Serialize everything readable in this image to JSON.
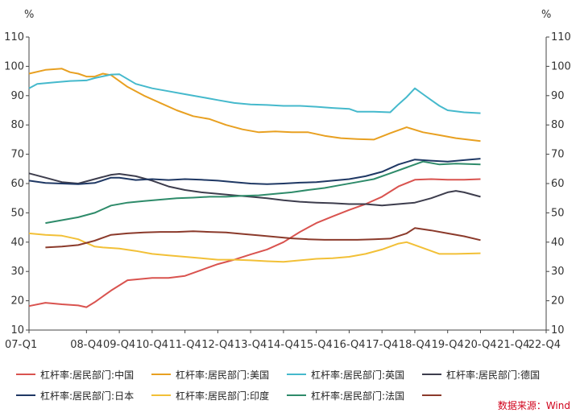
{
  "chart_data": {
    "type": "line",
    "title": "",
    "left_unit": "%",
    "right_unit": "%",
    "ylim": [
      10,
      110
    ],
    "yticks": [
      10,
      20,
      30,
      40,
      50,
      60,
      70,
      80,
      90,
      100,
      110
    ],
    "xlim": [
      0,
      63
    ],
    "xtick_labels": [
      "07-Q1",
      "08-Q4",
      "09-Q4",
      "10-Q4",
      "11-Q4",
      "12-Q4",
      "13-Q4",
      "14-Q4",
      "15-Q4",
      "16-Q4",
      "17-Q4",
      "18-Q4",
      "19-Q4",
      "20-Q4",
      "21-Q4",
      "22-Q4"
    ],
    "xtick_positions": [
      0,
      7,
      11,
      15,
      19,
      23,
      27,
      31,
      35,
      39,
      43,
      47,
      51,
      55,
      59,
      63
    ],
    "series": [
      {
        "name": "杠杆率:居民部门:中国",
        "color": "#d9534f",
        "points": [
          [
            0,
            18.2
          ],
          [
            2,
            19.3
          ],
          [
            4,
            18.8
          ],
          [
            6,
            18.4
          ],
          [
            7,
            17.8
          ],
          [
            8,
            19.5
          ],
          [
            10,
            23.5
          ],
          [
            12,
            27
          ],
          [
            15,
            27.8
          ],
          [
            17,
            27.8
          ],
          [
            19,
            28.5
          ],
          [
            21,
            30.5
          ],
          [
            23,
            32.5
          ],
          [
            25,
            34
          ],
          [
            27,
            35.8
          ],
          [
            29,
            37.5
          ],
          [
            31,
            40
          ],
          [
            33,
            43.5
          ],
          [
            35,
            46.5
          ],
          [
            37,
            48.8
          ],
          [
            39,
            51
          ],
          [
            41,
            53
          ],
          [
            43,
            55.5
          ],
          [
            45,
            59
          ],
          [
            47,
            61.3
          ],
          [
            49,
            61.5
          ],
          [
            51,
            61.3
          ],
          [
            53,
            61.3
          ],
          [
            55,
            61.5
          ]
        ]
      },
      {
        "name": "杠杆率:居民部门:美国",
        "color": "#e8a021",
        "points": [
          [
            0,
            97.5
          ],
          [
            2,
            98.8
          ],
          [
            4,
            99.2
          ],
          [
            5,
            98
          ],
          [
            6,
            97.5
          ],
          [
            7,
            96.5
          ],
          [
            8,
            96.5
          ],
          [
            9,
            97.5
          ],
          [
            10,
            97
          ],
          [
            12,
            93
          ],
          [
            14,
            90
          ],
          [
            16,
            87.5
          ],
          [
            18,
            85
          ],
          [
            20,
            83
          ],
          [
            22,
            82
          ],
          [
            24,
            80
          ],
          [
            26,
            78.5
          ],
          [
            28,
            77.5
          ],
          [
            30,
            77.8
          ],
          [
            32,
            77.5
          ],
          [
            34,
            77.5
          ],
          [
            36,
            76.3
          ],
          [
            38,
            75.5
          ],
          [
            40,
            75.2
          ],
          [
            42,
            75
          ],
          [
            44,
            77.2
          ],
          [
            46,
            79.2
          ],
          [
            48,
            77.5
          ],
          [
            50,
            76.5
          ],
          [
            52,
            75.5
          ],
          [
            55,
            74.5
          ]
        ]
      },
      {
        "name": "杠杆率:居民部门:英国",
        "color": "#45b9cc",
        "points": [
          [
            0,
            92.5
          ],
          [
            1,
            94
          ],
          [
            3,
            94.5
          ],
          [
            5,
            95
          ],
          [
            7,
            95.2
          ],
          [
            8,
            96
          ],
          [
            10,
            97.2
          ],
          [
            11,
            97.3
          ],
          [
            13,
            94
          ],
          [
            15,
            92.5
          ],
          [
            17,
            91.5
          ],
          [
            19,
            90.5
          ],
          [
            21,
            89.5
          ],
          [
            23,
            88.5
          ],
          [
            25,
            87.5
          ],
          [
            27,
            87
          ],
          [
            29,
            86.8
          ],
          [
            31,
            86.5
          ],
          [
            33,
            86.5
          ],
          [
            35,
            86.2
          ],
          [
            37,
            85.8
          ],
          [
            39,
            85.5
          ],
          [
            40,
            84.5
          ],
          [
            42,
            84.5
          ],
          [
            44,
            84.3
          ],
          [
            45,
            87
          ],
          [
            46,
            89.5
          ],
          [
            47,
            92.5
          ],
          [
            48,
            90.5
          ],
          [
            49,
            88.5
          ],
          [
            50,
            86.5
          ],
          [
            51,
            85
          ],
          [
            53,
            84.3
          ],
          [
            55,
            84
          ]
        ]
      },
      {
        "name": "杠杆率:居民部门:德国",
        "color": "#3d3d4d",
        "points": [
          [
            0,
            63.5
          ],
          [
            2,
            62
          ],
          [
            4,
            60.5
          ],
          [
            6,
            60
          ],
          [
            8,
            61.5
          ],
          [
            10,
            63
          ],
          [
            11,
            63.3
          ],
          [
            13,
            62.5
          ],
          [
            15,
            61
          ],
          [
            17,
            59
          ],
          [
            19,
            57.8
          ],
          [
            21,
            57
          ],
          [
            23,
            56.5
          ],
          [
            25,
            56
          ],
          [
            27,
            55.5
          ],
          [
            29,
            55
          ],
          [
            31,
            54.3
          ],
          [
            33,
            53.8
          ],
          [
            35,
            53.5
          ],
          [
            37,
            53.3
          ],
          [
            39,
            53
          ],
          [
            41,
            53
          ],
          [
            43,
            52.5
          ],
          [
            45,
            53
          ],
          [
            47,
            53.5
          ],
          [
            49,
            55
          ],
          [
            51,
            57
          ],
          [
            52,
            57.5
          ],
          [
            53,
            57
          ],
          [
            55,
            55.5
          ]
        ]
      },
      {
        "name": "杠杆率:居民部门:日本",
        "color": "#1f3864",
        "points": [
          [
            0,
            61
          ],
          [
            2,
            60.2
          ],
          [
            4,
            60
          ],
          [
            6,
            59.8
          ],
          [
            8,
            60.2
          ],
          [
            10,
            62
          ],
          [
            11,
            62
          ],
          [
            13,
            61.2
          ],
          [
            15,
            61.5
          ],
          [
            17,
            61.2
          ],
          [
            19,
            61.5
          ],
          [
            21,
            61.3
          ],
          [
            23,
            61
          ],
          [
            25,
            60.5
          ],
          [
            27,
            60
          ],
          [
            29,
            59.8
          ],
          [
            31,
            60
          ],
          [
            33,
            60.3
          ],
          [
            35,
            60.5
          ],
          [
            37,
            61
          ],
          [
            39,
            61.5
          ],
          [
            41,
            62.5
          ],
          [
            43,
            64
          ],
          [
            45,
            66.5
          ],
          [
            47,
            68.2
          ],
          [
            49,
            67.8
          ],
          [
            51,
            67.5
          ],
          [
            53,
            68
          ],
          [
            55,
            68.5
          ]
        ]
      },
      {
        "name": "杠杆率:居民部门:印度",
        "color": "#f2c037",
        "points": [
          [
            0,
            43
          ],
          [
            2,
            42.5
          ],
          [
            4,
            42.2
          ],
          [
            6,
            41
          ],
          [
            8,
            38.5
          ],
          [
            9,
            38.2
          ],
          [
            11,
            37.8
          ],
          [
            13,
            37
          ],
          [
            15,
            36
          ],
          [
            17,
            35.5
          ],
          [
            19,
            35
          ],
          [
            21,
            34.5
          ],
          [
            23,
            34
          ],
          [
            25,
            34
          ],
          [
            27,
            33.8
          ],
          [
            29,
            33.5
          ],
          [
            31,
            33.3
          ],
          [
            33,
            33.8
          ],
          [
            35,
            34.3
          ],
          [
            37,
            34.5
          ],
          [
            39,
            35
          ],
          [
            41,
            36
          ],
          [
            43,
            37.5
          ],
          [
            45,
            39.5
          ],
          [
            46,
            40
          ],
          [
            48,
            38
          ],
          [
            50,
            36
          ],
          [
            52,
            36
          ],
          [
            55,
            36.2
          ]
        ]
      },
      {
        "name": "杠杆率:居民部门:法国",
        "color": "#2e8b6a",
        "points": [
          [
            2,
            46.5
          ],
          [
            4,
            47.5
          ],
          [
            6,
            48.5
          ],
          [
            8,
            50
          ],
          [
            10,
            52.5
          ],
          [
            12,
            53.5
          ],
          [
            14,
            54
          ],
          [
            16,
            54.5
          ],
          [
            18,
            55
          ],
          [
            20,
            55.2
          ],
          [
            22,
            55.5
          ],
          [
            24,
            55.5
          ],
          [
            26,
            55.8
          ],
          [
            28,
            56
          ],
          [
            30,
            56.5
          ],
          [
            32,
            57
          ],
          [
            34,
            57.8
          ],
          [
            36,
            58.5
          ],
          [
            38,
            59.5
          ],
          [
            40,
            60.5
          ],
          [
            42,
            61.5
          ],
          [
            44,
            63.5
          ],
          [
            46,
            65.5
          ],
          [
            48,
            67.5
          ],
          [
            50,
            66.5
          ],
          [
            52,
            66.8
          ],
          [
            55,
            66.5
          ]
        ]
      },
      {
        "name": "",
        "color": "#8b3a2b",
        "points": [
          [
            2,
            38.2
          ],
          [
            4,
            38.5
          ],
          [
            6,
            39
          ],
          [
            8,
            40.5
          ],
          [
            10,
            42.5
          ],
          [
            12,
            43
          ],
          [
            14,
            43.3
          ],
          [
            16,
            43.5
          ],
          [
            18,
            43.5
          ],
          [
            20,
            43.7
          ],
          [
            22,
            43.5
          ],
          [
            24,
            43.3
          ],
          [
            26,
            42.8
          ],
          [
            28,
            42.3
          ],
          [
            30,
            41.8
          ],
          [
            32,
            41.3
          ],
          [
            34,
            41
          ],
          [
            36,
            40.8
          ],
          [
            38,
            40.8
          ],
          [
            40,
            40.8
          ],
          [
            42,
            41
          ],
          [
            44,
            41.2
          ],
          [
            46,
            43
          ],
          [
            47,
            44.8
          ],
          [
            49,
            44
          ],
          [
            51,
            43
          ],
          [
            53,
            42
          ],
          [
            55,
            40.7
          ]
        ]
      }
    ],
    "legend_placement": "bottom",
    "grid": false
  },
  "source_text": "数据来源：Wind"
}
